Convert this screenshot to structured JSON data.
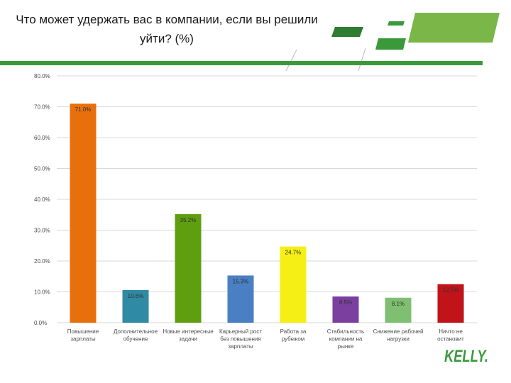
{
  "title": "Что может удержать вас в компании, если вы решили уйти? (%)",
  "logo_text": "KELLY.",
  "colors": {
    "brand_green": "#3a9a3a",
    "grid": "#d9d9d9",
    "axis_text": "#4d4d4d"
  },
  "chart_data": {
    "type": "bar",
    "title": "Что может удержать вас в компании, если вы решили уйти? (%)",
    "xlabel": "",
    "ylabel": "",
    "ylim": [
      0,
      80
    ],
    "yticks": [
      "0.0%",
      "10.0%",
      "20.0%",
      "30.0%",
      "40.0%",
      "50.0%",
      "60.0%",
      "70.0%",
      "80.0%"
    ],
    "grid": true,
    "categories": [
      "Повышение зарплаты",
      "Дополнительное обучение",
      "Новые интересные задачи",
      "Карьерный рост без повышения зарплаты",
      "Работа за рубежом",
      "Стабильность компании на рынке",
      "Снижение рабочей нагрузки",
      "Ничто не остановит"
    ],
    "values": [
      71.0,
      10.6,
      35.2,
      15.3,
      24.7,
      8.5,
      8.1,
      12.5
    ],
    "labels": [
      "71.0%",
      "10.6%",
      "35.2%",
      "15.3%",
      "24.7%",
      "8.5%",
      "8.1%",
      "12.5%"
    ],
    "bar_colors": [
      "#e8700c",
      "#2f8aa3",
      "#5f9e0f",
      "#4a7fc4",
      "#f5ef15",
      "#7b3fa0",
      "#7fbf72",
      "#c0131a"
    ]
  }
}
